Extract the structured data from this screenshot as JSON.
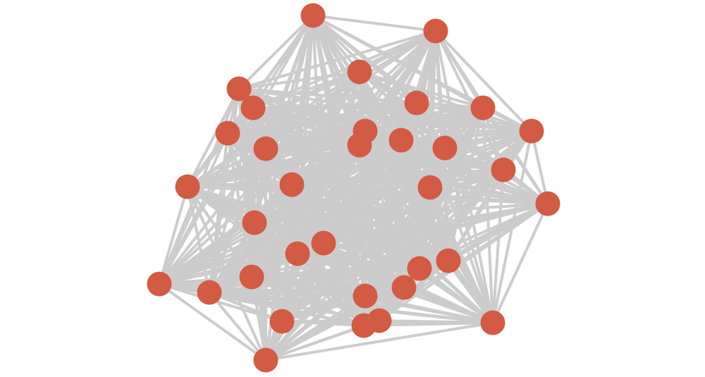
{
  "node_color": "#d35b43",
  "edge_color": "#cccccc"
}
